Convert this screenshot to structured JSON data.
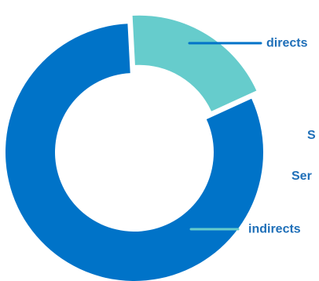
{
  "chart_data": {
    "type": "pie",
    "donut": true,
    "title": "",
    "categories": [
      "directs",
      "indirects"
    ],
    "values": [
      19,
      81
    ],
    "colors": [
      "#66CCCC",
      "#0073C8"
    ],
    "label_color": "#1F6FB8",
    "legend": "none"
  },
  "side_texts": [
    "S",
    "Ser"
  ]
}
